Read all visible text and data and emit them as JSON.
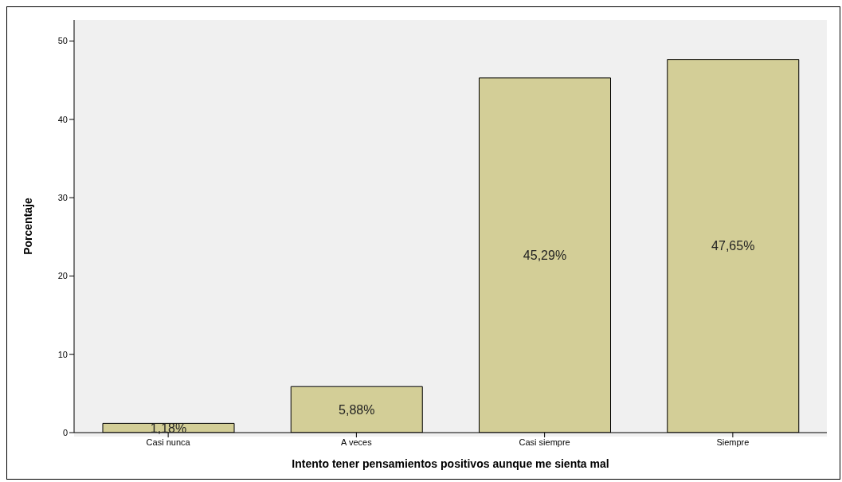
{
  "chart_data": {
    "type": "bar",
    "xlabel": "Intento tener pensamientos positivos aunque me sienta mal",
    "ylabel": "Porcentaje",
    "categories": [
      "Casi nunca",
      "A veces",
      "Casi siempre",
      "Siempre"
    ],
    "values": [
      1.18,
      5.88,
      45.29,
      47.65
    ],
    "value_labels": [
      "1,18%",
      "5,88%",
      "45,29%",
      "47,65%"
    ],
    "color": "#d3ce97",
    "ylim": [
      0,
      52.7
    ],
    "yticks": [
      0,
      10,
      20,
      30,
      40,
      50
    ],
    "grid": false
  }
}
